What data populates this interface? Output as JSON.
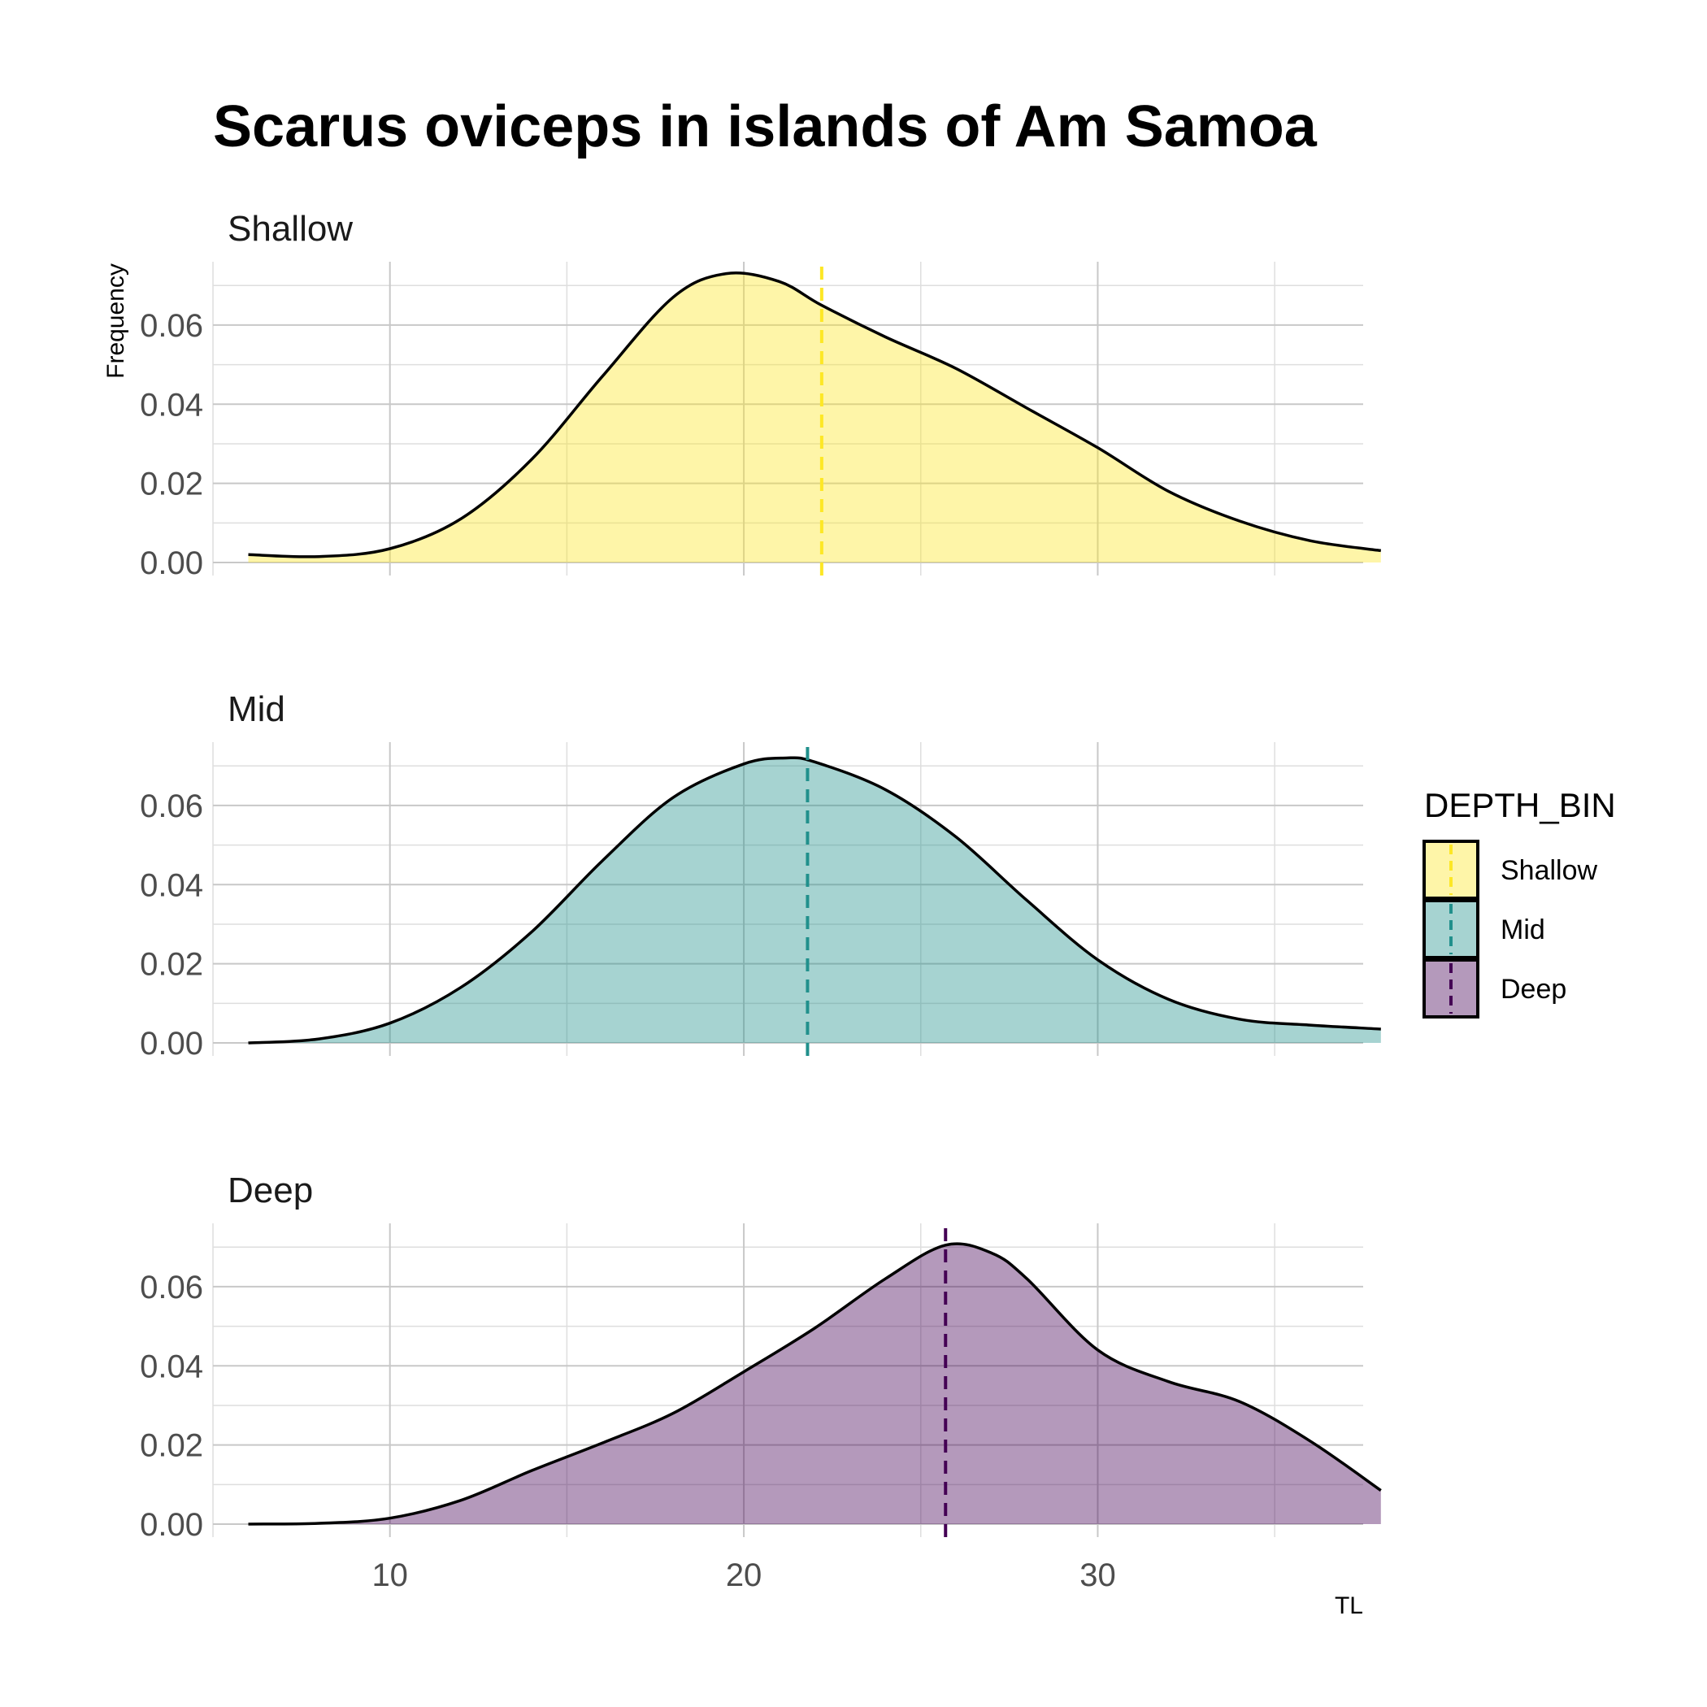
{
  "chart_data": {
    "type": "area",
    "title": "Scarus oviceps in islands of Am Samoa",
    "xlabel": "TL",
    "ylabel": "Frequency",
    "xlim": [
      5,
      37.5
    ],
    "ylim": [
      0,
      0.076
    ],
    "xticks": [
      "10",
      "20",
      "30"
    ],
    "xtick_values": [
      10,
      20,
      30
    ],
    "yticks": [
      "0.00",
      "0.02",
      "0.04",
      "0.06"
    ],
    "ytick_values": [
      0,
      0.02,
      0.04,
      0.06
    ],
    "grid": true,
    "legend": {
      "title": "DEPTH_BIN",
      "placement": "right",
      "entries": [
        "Shallow",
        "Mid",
        "Deep"
      ]
    },
    "panels": [
      {
        "name": "Shallow",
        "fill": "#FDE725",
        "mean_line_color": "#FDE725",
        "mean_tl": 22.2,
        "x": [
          6,
          8,
          10,
          12,
          14,
          16,
          18,
          19.5,
          21,
          22.2,
          24,
          26,
          28,
          30,
          32,
          34,
          36,
          38
        ],
        "y": [
          0.002,
          0.0015,
          0.0035,
          0.011,
          0.026,
          0.047,
          0.067,
          0.073,
          0.071,
          0.065,
          0.057,
          0.049,
          0.039,
          0.029,
          0.018,
          0.0105,
          0.0055,
          0.003
        ]
      },
      {
        "name": "Mid",
        "fill": "#21908C",
        "mean_line_color": "#21908C",
        "mean_tl": 21.8,
        "x": [
          6,
          8,
          10,
          12,
          14,
          16,
          18,
          20,
          21.2,
          22,
          24,
          26,
          28,
          30,
          32,
          34,
          36,
          38
        ],
        "y": [
          0.0,
          0.001,
          0.005,
          0.014,
          0.028,
          0.046,
          0.062,
          0.0705,
          0.072,
          0.071,
          0.064,
          0.052,
          0.036,
          0.021,
          0.011,
          0.006,
          0.0045,
          0.0035
        ]
      },
      {
        "name": "Deep",
        "fill": "#440154",
        "mean_line_color": "#440154",
        "mean_tl": 25.7,
        "x": [
          6,
          8,
          10,
          12,
          14,
          16,
          18,
          20,
          22,
          24,
          25.7,
          27,
          28,
          30,
          32,
          34,
          36,
          38
        ],
        "y": [
          0.0,
          0.0002,
          0.0015,
          0.006,
          0.0135,
          0.0205,
          0.028,
          0.0385,
          0.0495,
          0.062,
          0.0705,
          0.0685,
          0.062,
          0.044,
          0.036,
          0.031,
          0.021,
          0.0085
        ]
      }
    ]
  }
}
